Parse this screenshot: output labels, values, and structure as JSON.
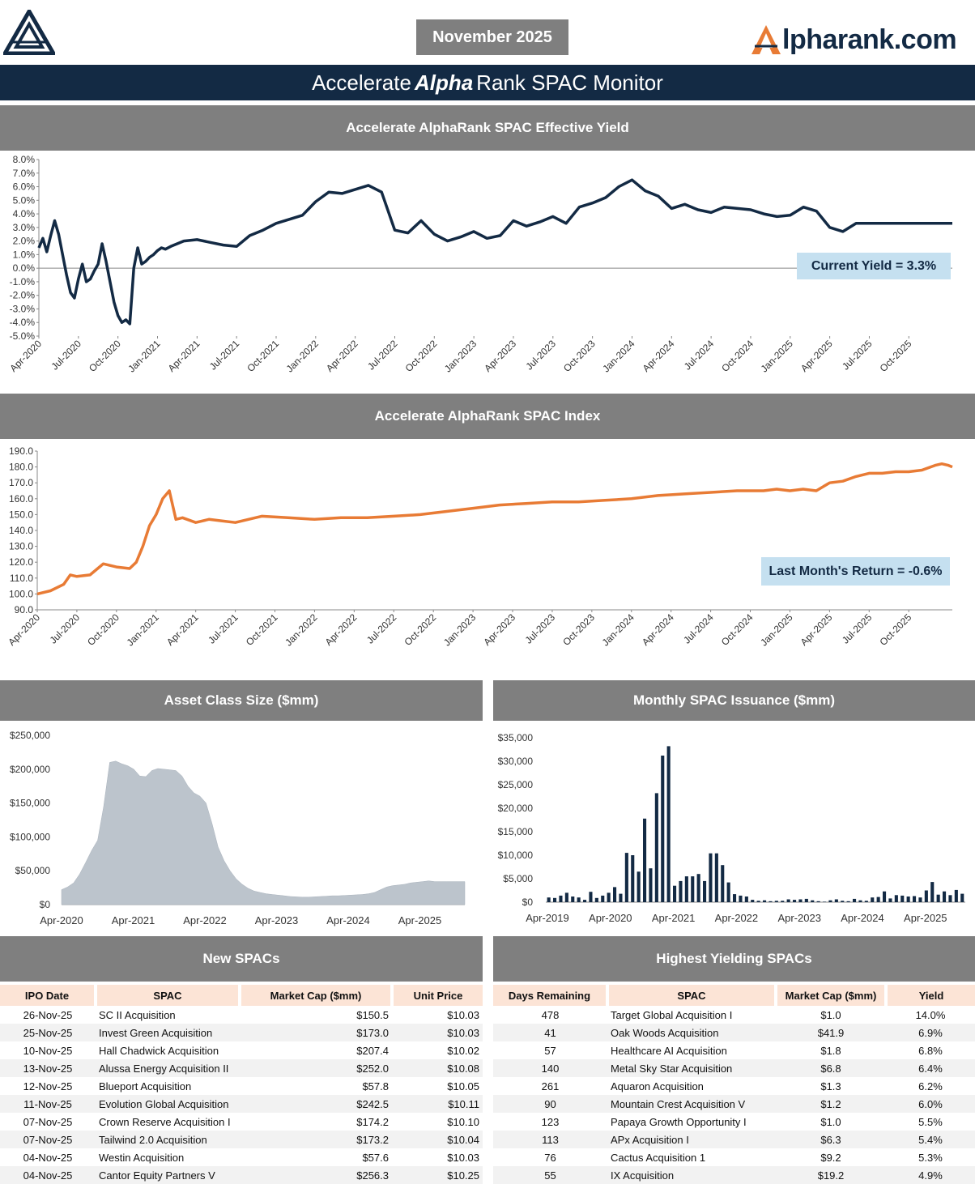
{
  "header": {
    "date_label": "November 2025",
    "brand_text": "lpharank.com",
    "title_pre": "Accelerate",
    "title_em": "Alpha",
    "title_post": "Rank SPAC Monitor"
  },
  "sections": {
    "yield_title": "Accelerate AlphaRank SPAC Effective Yield",
    "index_title": "Accelerate AlphaRank SPAC Index",
    "size_title": "Asset Class Size ($mm)",
    "issuance_title": "Monthly SPAC Issuance ($mm)",
    "new_spacs_title": "New SPACs",
    "high_yield_title": "Highest Yielding SPACs"
  },
  "callouts": {
    "current_yield": "Current Yield = 3.3%",
    "last_month_return": "Last Month's Return = -0.6%"
  },
  "colors": {
    "navy": "#132a44",
    "orange": "#e87b35",
    "gray_header": "#7f7f7f",
    "area_fill": "#bcc4cc",
    "callout_bg": "#c5e0f0",
    "table_header_bg": "#fce4d6"
  },
  "chart_data": [
    {
      "type": "line",
      "id": "yield",
      "ylim": [
        -5.0,
        8.0
      ],
      "yticks": [
        "8.0%",
        "7.0%",
        "6.0%",
        "5.0%",
        "4.0%",
        "3.0%",
        "2.0%",
        "1.0%",
        "0.0%",
        "-1.0%",
        "-2.0%",
        "-3.0%",
        "-4.0%",
        "-5.0%"
      ],
      "xticks": [
        "Apr-2020",
        "Jul-2020",
        "Oct-2020",
        "Jan-2021",
        "Apr-2021",
        "Jul-2021",
        "Oct-2021",
        "Jan-2022",
        "Apr-2022",
        "Jul-2022",
        "Oct-2022",
        "Jan-2023",
        "Apr-2023",
        "Jul-2023",
        "Oct-2023",
        "Jan-2024",
        "Apr-2024",
        "Jul-2024",
        "Oct-2024",
        "Jan-2025",
        "Apr-2025",
        "Jul-2025",
        "Oct-2025"
      ],
      "series": [
        {
          "x": [
            0,
            0.3,
            0.6,
            0.9,
            1.2,
            1.5,
            1.8,
            2.1,
            2.4,
            2.7,
            3.0,
            3.3,
            3.6,
            3.9,
            4.2,
            4.5,
            4.8,
            5.1,
            5.4,
            5.7,
            6.0,
            6.3,
            6.6,
            6.9,
            7.2,
            7.5,
            7.8,
            8.1,
            8.4,
            8.7,
            9.0,
            9.3,
            9.6,
            10.0,
            11,
            12,
            13,
            14,
            15,
            16,
            17,
            18,
            19,
            20,
            21,
            22,
            23,
            24,
            25,
            26,
            27,
            28,
            29,
            30,
            31,
            32,
            33,
            34,
            35,
            36,
            37,
            38,
            39,
            40,
            41,
            42,
            43,
            44,
            45,
            46,
            47,
            48,
            49,
            50,
            51,
            52,
            53,
            54,
            55,
            56,
            57,
            58,
            59,
            60,
            61,
            62,
            63,
            64,
            65,
            66,
            67,
            68,
            69,
            69.3
          ],
          "y": [
            1.5,
            2.2,
            1.2,
            2.4,
            3.5,
            2.5,
            1.0,
            -0.5,
            -1.8,
            -2.2,
            -0.8,
            0.3,
            -1.0,
            -0.8,
            -0.2,
            0.3,
            1.8,
            0.5,
            -1.0,
            -2.5,
            -3.5,
            -4.0,
            -3.8,
            -4.1,
            0.0,
            1.5,
            0.3,
            0.5,
            0.8,
            1.0,
            1.3,
            1.5,
            1.4,
            1.6,
            2.0,
            2.1,
            1.9,
            1.7,
            1.6,
            2.4,
            2.8,
            3.3,
            3.6,
            3.9,
            4.9,
            5.6,
            5.5,
            5.8,
            6.1,
            5.6,
            2.8,
            2.6,
            3.5,
            2.5,
            2.0,
            2.3,
            2.7,
            2.2,
            2.4,
            3.5,
            3.1,
            3.4,
            3.8,
            3.3,
            4.5,
            4.8,
            5.2,
            6.0,
            6.5,
            5.7,
            5.3,
            4.4,
            4.7,
            4.3,
            4.1,
            4.5,
            4.4,
            4.3,
            4.0,
            3.8,
            3.9,
            4.5,
            4.2,
            3.0,
            2.7,
            3.3,
            3.3,
            3.3,
            3.3,
            3.3,
            3.3,
            3.3,
            3.3,
            3.3
          ]
        }
      ]
    },
    {
      "type": "line",
      "id": "index",
      "ylim": [
        90.0,
        190.0
      ],
      "yticks": [
        "190.0",
        "180.0",
        "170.0",
        "160.0",
        "150.0",
        "140.0",
        "130.0",
        "120.0",
        "110.0",
        "100.0",
        "90.0"
      ],
      "xticks": [
        "Apr-2020",
        "Jul-2020",
        "Oct-2020",
        "Jan-2021",
        "Apr-2021",
        "Jul-2021",
        "Oct-2021",
        "Jan-2022",
        "Apr-2022",
        "Jul-2022",
        "Oct-2022",
        "Jan-2023",
        "Apr-2023",
        "Jul-2023",
        "Oct-2023",
        "Jan-2024",
        "Apr-2024",
        "Jul-2024",
        "Oct-2024",
        "Jan-2025",
        "Apr-2025",
        "Jul-2025",
        "Oct-2025"
      ],
      "series": [
        {
          "x": [
            0,
            1,
            2,
            2.5,
            3,
            4,
            5,
            6,
            7,
            7.5,
            8,
            8.5,
            9,
            9.5,
            10,
            10.5,
            11,
            12,
            13,
            14,
            15,
            17,
            19,
            21,
            23,
            25,
            27,
            29,
            31,
            33,
            35,
            37,
            39,
            41,
            43,
            45,
            47,
            49,
            51,
            53,
            55,
            56,
            57,
            58,
            59,
            60,
            61,
            62,
            63,
            64,
            65,
            66,
            67,
            68,
            68.5,
            69,
            69.3
          ],
          "y": [
            100,
            102,
            106,
            112,
            111,
            112,
            119,
            117,
            116,
            120,
            130,
            143,
            150,
            160,
            165,
            147,
            148,
            145,
            147,
            146,
            145,
            149,
            148,
            147,
            148,
            148,
            149,
            150,
            152,
            154,
            156,
            157,
            158,
            158,
            159,
            160,
            162,
            163,
            164,
            165,
            165,
            166,
            165,
            166,
            165,
            170,
            171,
            174,
            176,
            176,
            177,
            177,
            178,
            181,
            182,
            181,
            180
          ]
        }
      ]
    },
    {
      "type": "area",
      "id": "asset_size",
      "ylim": [
        0,
        250000
      ],
      "yticks": [
        "$250,000",
        "$200,000",
        "$150,000",
        "$100,000",
        "$50,000",
        "$0"
      ],
      "xticks": [
        "Apr-2020",
        "Apr-2021",
        "Apr-2022",
        "Apr-2023",
        "Apr-2024",
        "Apr-2025"
      ],
      "series": [
        {
          "x": [
            0,
            1,
            2,
            3,
            4,
            5,
            6,
            7,
            8,
            9,
            10,
            11,
            12,
            13,
            14,
            15,
            16,
            17,
            18,
            19,
            20,
            21,
            22,
            23,
            24,
            25,
            26,
            27,
            28,
            29,
            30,
            31,
            32,
            33,
            34,
            35,
            36,
            37,
            38,
            39,
            40,
            41,
            42,
            43,
            44,
            45,
            46,
            47,
            48,
            49,
            50,
            51,
            52,
            53,
            54,
            55,
            56,
            57,
            58,
            59,
            60,
            61,
            62,
            63,
            64,
            65,
            66,
            67
          ],
          "y": [
            22000,
            26000,
            32000,
            45000,
            62000,
            80000,
            95000,
            145000,
            210000,
            212000,
            208000,
            205000,
            200000,
            190000,
            189000,
            198000,
            201000,
            200000,
            199000,
            198000,
            190000,
            175000,
            165000,
            160000,
            150000,
            120000,
            85000,
            65000,
            50000,
            38000,
            30000,
            24000,
            20000,
            18000,
            16000,
            15000,
            14000,
            13000,
            12000,
            11500,
            11000,
            11000,
            11500,
            12000,
            12500,
            13000,
            13000,
            13500,
            14000,
            14500,
            15000,
            16000,
            18000,
            22000,
            26000,
            28000,
            29000,
            30000,
            32000,
            33000,
            34000,
            35000,
            34000,
            34000,
            34000,
            34000,
            34000,
            34000
          ]
        }
      ]
    },
    {
      "type": "bar",
      "id": "issuance",
      "ylim": [
        0,
        35000
      ],
      "yticks": [
        "$35,000",
        "$30,000",
        "$25,000",
        "$20,000",
        "$15,000",
        "$10,000",
        "$5,000",
        "$0"
      ],
      "xticks": [
        "Apr-2019",
        "Apr-2020",
        "Apr-2021",
        "Apr-2022",
        "Apr-2023",
        "Apr-2024",
        "Apr-2025"
      ],
      "values": [
        1000,
        900,
        1400,
        2000,
        1200,
        1000,
        500,
        2200,
        900,
        1400,
        2000,
        3200,
        1800,
        10500,
        10000,
        6500,
        17800,
        7200,
        23200,
        31200,
        33200,
        3500,
        4500,
        5500,
        5500,
        6000,
        4500,
        10400,
        10400,
        7900,
        4200,
        1700,
        1400,
        1200,
        500,
        300,
        400,
        200,
        300,
        300,
        600,
        500,
        600,
        700,
        400,
        200,
        100,
        400,
        600,
        300,
        200,
        700,
        400,
        300,
        1000,
        1100,
        2300,
        800,
        1500,
        1400,
        1200,
        1300,
        1000,
        2500,
        4300,
        1600,
        2300,
        1500,
        2600,
        1800
      ]
    }
  ],
  "new_spacs": {
    "headers": [
      "IPO Date",
      "SPAC",
      "Market Cap ($mm)",
      "Unit Price"
    ],
    "rows": [
      [
        "26-Nov-25",
        "SC II Acquisition",
        "$150.5",
        "$10.03"
      ],
      [
        "25-Nov-25",
        "Invest Green Acquisition",
        "$173.0",
        "$10.03"
      ],
      [
        "10-Nov-25",
        "Hall Chadwick Acquisition",
        "$207.4",
        "$10.02"
      ],
      [
        "13-Nov-25",
        "Alussa Energy Acquisition II",
        "$252.0",
        "$10.08"
      ],
      [
        "12-Nov-25",
        "Blueport Acquisition",
        "$57.8",
        "$10.05"
      ],
      [
        "11-Nov-25",
        "Evolution Global Acquisition",
        "$242.5",
        "$10.11"
      ],
      [
        "07-Nov-25",
        "Crown Reserve Acquisition I",
        "$174.2",
        "$10.10"
      ],
      [
        "07-Nov-25",
        "Tailwind 2.0 Acquisition",
        "$173.2",
        "$10.04"
      ],
      [
        "04-Nov-25",
        "Westin Acquisition",
        "$57.6",
        "$10.03"
      ],
      [
        "04-Nov-25",
        "Cantor Equity Partners V",
        "$256.3",
        "$10.25"
      ]
    ]
  },
  "high_yield": {
    "headers": [
      "Days Remaining",
      "SPAC",
      "Market Cap ($mm)",
      "Yield"
    ],
    "rows": [
      [
        "478",
        "Target Global Acquisition I",
        "$1.0",
        "14.0%"
      ],
      [
        "41",
        "Oak Woods Acquisition",
        "$41.9",
        "6.9%"
      ],
      [
        "57",
        "Healthcare AI Acquisition",
        "$1.8",
        "6.8%"
      ],
      [
        "140",
        "Metal Sky Star Acquisition",
        "$6.8",
        "6.4%"
      ],
      [
        "261",
        "Aquaron Acquisition",
        "$1.3",
        "6.2%"
      ],
      [
        "90",
        "Mountain Crest Acquisition V",
        "$1.2",
        "6.0%"
      ],
      [
        "123",
        "Papaya Growth Opportunity I",
        "$1.0",
        "5.5%"
      ],
      [
        "113",
        "APx Acquisition I",
        "$6.3",
        "5.4%"
      ],
      [
        "76",
        "Cactus Acquisition 1",
        "$9.2",
        "5.3%"
      ],
      [
        "55",
        "IX Acquisition",
        "$19.2",
        "4.9%"
      ]
    ]
  }
}
